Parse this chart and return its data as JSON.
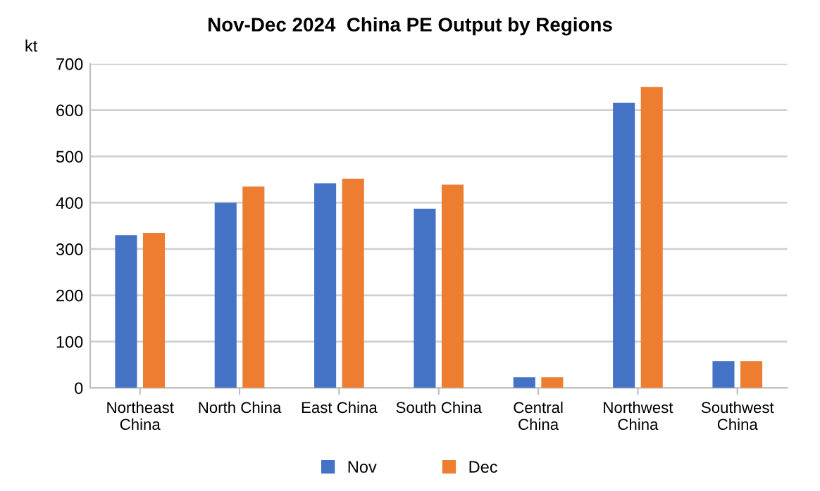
{
  "chart_data": {
    "type": "bar",
    "title": "Nov-Dec 2024  China PE Output by Regions",
    "ylabel": "kt",
    "categories": [
      "Northeast\nChina",
      "North China",
      "East China",
      "South China",
      "Central\nChina",
      "Northwest\nChina",
      "Southwest\nChina"
    ],
    "series": [
      {
        "name": "Nov",
        "color": "#4472c4",
        "values": [
          330,
          400,
          442,
          387,
          23,
          616,
          58
        ]
      },
      {
        "name": "Dec",
        "color": "#ed7d31",
        "values": [
          335,
          435,
          452,
          439,
          23,
          650,
          58
        ]
      }
    ],
    "ylim": [
      0,
      700
    ],
    "yticks": [
      0,
      100,
      200,
      300,
      400,
      500,
      600,
      700
    ],
    "grid": "y",
    "legend": "bottom"
  }
}
